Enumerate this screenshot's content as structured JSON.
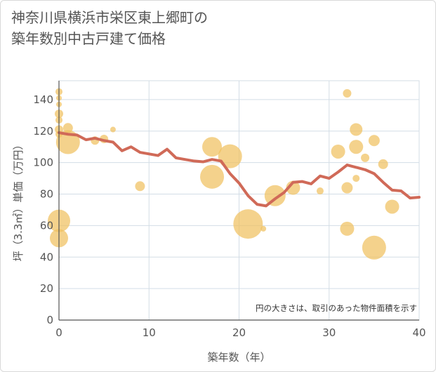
{
  "title_line1": "神奈川県横浜市栄区東上郷町の",
  "title_line2": "築年数別中古戸建て価格",
  "note": "円の大きさは、取引のあった物件面積を示す",
  "colors": {
    "bubble": "#f0c060",
    "line": "#d06a58",
    "grid": "#d3dde6",
    "axis": "#555555"
  },
  "chart_data": {
    "type": "scatter",
    "xlabel": "築年数（年）",
    "ylabel": "坪（3.3㎡）単価（万円）",
    "xlim": [
      0,
      40
    ],
    "ylim": [
      0,
      152
    ],
    "xticks": [
      0,
      10,
      20,
      30,
      40
    ],
    "yticks": [
      0,
      20,
      40,
      60,
      80,
      100,
      120,
      140
    ],
    "bubbles": [
      {
        "x": 0,
        "y": 145,
        "s": 5
      },
      {
        "x": 0,
        "y": 141,
        "s": 4
      },
      {
        "x": 0,
        "y": 137,
        "s": 4
      },
      {
        "x": 0,
        "y": 131,
        "s": 6
      },
      {
        "x": 0,
        "y": 127,
        "s": 5
      },
      {
        "x": 0,
        "y": 121,
        "s": 6
      },
      {
        "x": 0,
        "y": 118,
        "s": 5
      },
      {
        "x": 0,
        "y": 63,
        "s": 16
      },
      {
        "x": 0,
        "y": 52,
        "s": 13
      },
      {
        "x": 1,
        "y": 113,
        "s": 17
      },
      {
        "x": 1,
        "y": 122,
        "s": 7
      },
      {
        "x": 4,
        "y": 114,
        "s": 6
      },
      {
        "x": 5,
        "y": 115,
        "s": 6
      },
      {
        "x": 6,
        "y": 121,
        "s": 4
      },
      {
        "x": 9,
        "y": 85,
        "s": 7
      },
      {
        "x": 17,
        "y": 110,
        "s": 14
      },
      {
        "x": 17,
        "y": 91,
        "s": 17
      },
      {
        "x": 19,
        "y": 104,
        "s": 17
      },
      {
        "x": 21,
        "y": 61,
        "s": 21
      },
      {
        "x": 22.7,
        "y": 58,
        "s": 4
      },
      {
        "x": 24,
        "y": 79,
        "s": 15
      },
      {
        "x": 26,
        "y": 84,
        "s": 10
      },
      {
        "x": 29,
        "y": 82,
        "s": 5
      },
      {
        "x": 31,
        "y": 107,
        "s": 10
      },
      {
        "x": 32,
        "y": 144,
        "s": 6
      },
      {
        "x": 32,
        "y": 84,
        "s": 8
      },
      {
        "x": 32,
        "y": 58,
        "s": 10
      },
      {
        "x": 33,
        "y": 121,
        "s": 9
      },
      {
        "x": 33,
        "y": 110,
        "s": 10
      },
      {
        "x": 33,
        "y": 90,
        "s": 5
      },
      {
        "x": 34,
        "y": 103,
        "s": 6
      },
      {
        "x": 35,
        "y": 114,
        "s": 8
      },
      {
        "x": 35,
        "y": 46,
        "s": 17
      },
      {
        "x": 36,
        "y": 99,
        "s": 7
      },
      {
        "x": 37,
        "y": 72,
        "s": 10
      }
    ],
    "trend": {
      "x": [
        0,
        1,
        2,
        3,
        4,
        5,
        6,
        7,
        8,
        9,
        10,
        11,
        12,
        13,
        14,
        15,
        16,
        17,
        18,
        19,
        20,
        21,
        22,
        23,
        24,
        25,
        26,
        27,
        28,
        29,
        30,
        31,
        32,
        33,
        34,
        35,
        36,
        37,
        38,
        39,
        40
      ],
      "y": [
        119,
        118,
        117.5,
        114.5,
        115.5,
        114,
        113,
        107.5,
        110,
        106.5,
        105.5,
        104.5,
        108.5,
        103,
        102,
        101,
        100.5,
        102,
        101,
        93,
        87,
        79,
        73.5,
        72.5,
        77,
        81,
        87.5,
        88,
        86.5,
        91.5,
        90,
        94,
        98.5,
        97,
        95.5,
        93,
        87.5,
        82.5,
        82,
        77.5,
        78
      ]
    }
  }
}
